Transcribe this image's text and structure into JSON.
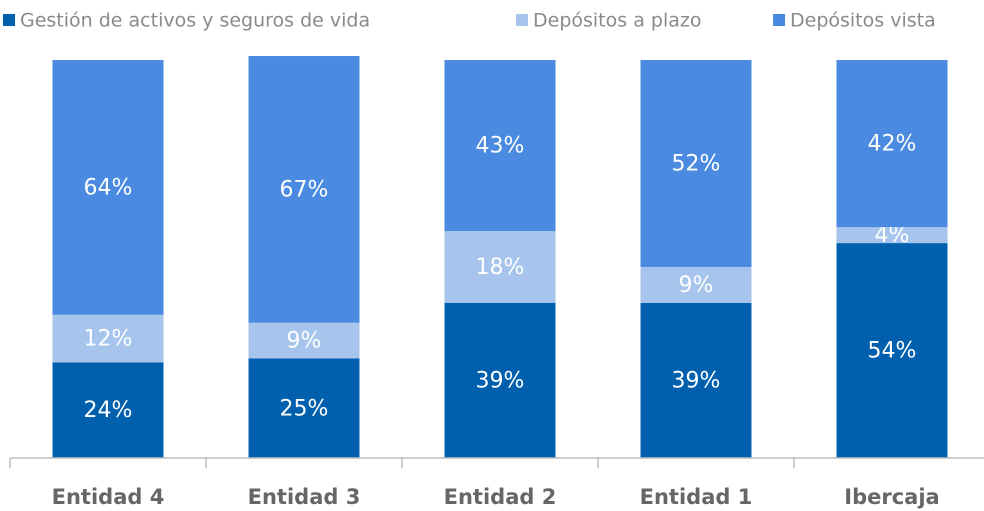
{
  "chart_data": {
    "type": "stacked_bar",
    "categories": [
      "Entidad 4",
      "Entidad 3",
      "Entidad 2",
      "Entidad 1",
      "Ibercaja"
    ],
    "ylim": [
      0,
      100
    ],
    "series": [
      {
        "name": "Gestión de activos y seguros de vida",
        "color": "#0060ae",
        "values": [
          24,
          25,
          39,
          39,
          54
        ],
        "value_labels": [
          "24%",
          "25%",
          "39%",
          "39%",
          "54%"
        ]
      },
      {
        "name": "Depósitos a plazo",
        "color": "#a6c4ec",
        "values": [
          12,
          9,
          18,
          9,
          4
        ],
        "value_labels": [
          "12%",
          "9%",
          "18%",
          "9%",
          "4%"
        ]
      },
      {
        "name": "Depósitos vista",
        "color": "#4a8ae0",
        "values": [
          64,
          67,
          43,
          52,
          42
        ],
        "value_labels": [
          "64%",
          "67%",
          "43%",
          "52%",
          "42%"
        ]
      }
    ],
    "legend": "top"
  }
}
